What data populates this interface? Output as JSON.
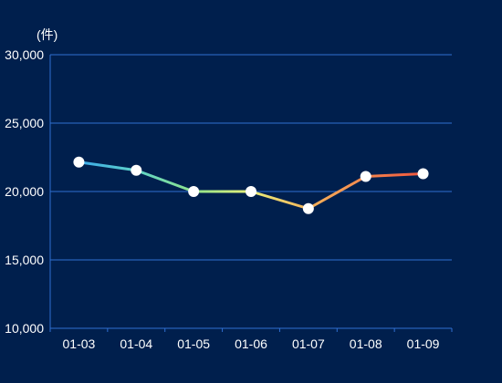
{
  "chart_data": {
    "type": "line",
    "unit_label": "(件)",
    "categories": [
      "01-03",
      "01-04",
      "01-05",
      "01-06",
      "01-07",
      "01-08",
      "01-09"
    ],
    "series": [
      {
        "values": [
          22150,
          21550,
          20000,
          20000,
          18750,
          21100,
          21300
        ]
      }
    ],
    "y_ticks": [
      "10,000",
      "15,000",
      "20,000",
      "25,000",
      "30,000"
    ],
    "ylim": [
      10000,
      30000
    ],
    "grid": true,
    "gradient_colors": [
      "#3aa8e8",
      "#5fd3c8",
      "#8fe38a",
      "#e8ef7a",
      "#f4b35a",
      "#f4874e",
      "#f0543c"
    ],
    "colors": {
      "background": "#001f4d",
      "axis": "#2f6fd1",
      "grid": "#2f6fd1",
      "marker": "#ffffff",
      "text": "#ffffff"
    }
  }
}
